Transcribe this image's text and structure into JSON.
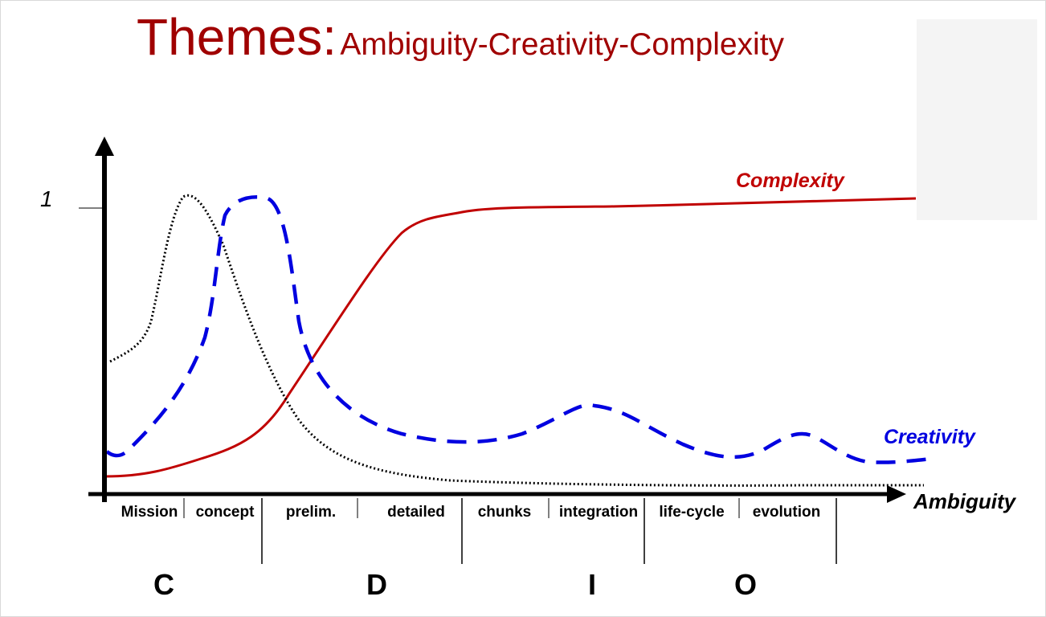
{
  "title": {
    "main": "Themes:",
    "sub": "Ambiguity-Creativity-Complexity",
    "color": "#a00000"
  },
  "axes": {
    "y_tick_label": "1",
    "x_label": "Ambiguity"
  },
  "curves": {
    "complexity": {
      "label": "Complexity",
      "color": "#c00000",
      "style": "solid"
    },
    "creativity": {
      "label": "Creativity",
      "color": "#0000e0",
      "style": "dashed"
    },
    "ambiguity": {
      "label": "",
      "color": "#000000",
      "style": "dotted"
    }
  },
  "phases": [
    "Mission",
    "concept",
    "prelim.",
    "detailed",
    "chunks",
    "integration",
    "life-cycle",
    "evolution"
  ],
  "stages": [
    "C",
    "D",
    "I",
    "O"
  ]
}
